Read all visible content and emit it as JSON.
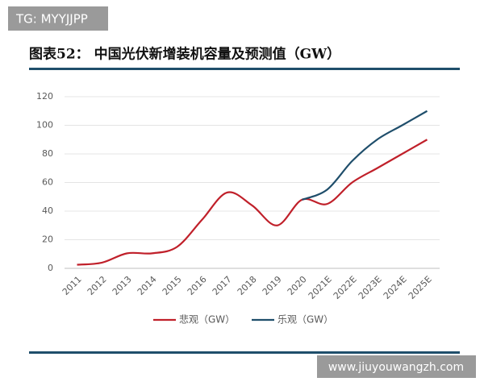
{
  "watermarks": {
    "top": "TG: MYYJJPP",
    "bottom": "www.jiuyouwangzh.com"
  },
  "chart_data": {
    "type": "line",
    "title": "图表52：  中国光伏新增装机容量及预测值（GW）",
    "categories": [
      "2011",
      "2012",
      "2013",
      "2014",
      "2015",
      "2016",
      "2017",
      "2018",
      "2019",
      "2020",
      "2021E",
      "2022E",
      "2023E",
      "2024E",
      "2025E"
    ],
    "series": [
      {
        "name": "悲观（GW）",
        "color": "#c0202a",
        "values": [
          2.5,
          4,
          10.5,
          10.5,
          15,
          34,
          53,
          44,
          30,
          48,
          45,
          60,
          70,
          80,
          90
        ]
      },
      {
        "name": "乐观（GW）",
        "color": "#1f4e6b",
        "values": [
          null,
          null,
          null,
          null,
          null,
          null,
          null,
          null,
          null,
          48,
          55,
          75,
          90,
          100,
          110
        ]
      }
    ],
    "ylim": [
      0,
      120
    ],
    "yticks": [
      0,
      20,
      40,
      60,
      80,
      100,
      120
    ],
    "grid": true
  }
}
